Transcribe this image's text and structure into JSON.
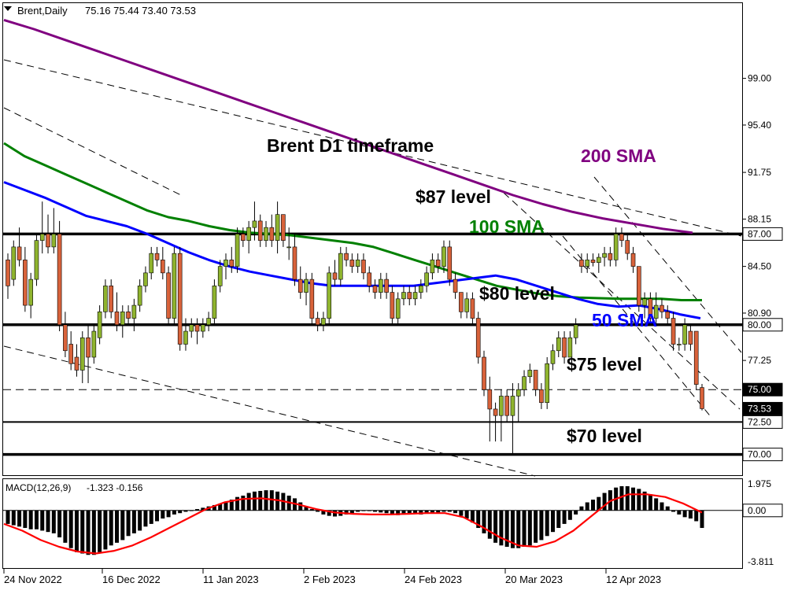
{
  "header": {
    "symbol": "Brent,Daily",
    "ohlc": "75.16 75.44 73.40 73.53"
  },
  "macd_header": {
    "label": "MACD(12,26,9)",
    "values": "-1.323 -0.156"
  },
  "annotations": {
    "title": "Brent D1 timeframe",
    "sma200": "200 SMA",
    "sma100": "100 SMA",
    "sma50": "50 SMA",
    "level87": "$87 level",
    "level80": "$80 level",
    "level75": "$75 level",
    "level70": "$70 level"
  },
  "colors": {
    "bull": "#8fb42e",
    "bear": "#d8623a",
    "sma200": "#800080",
    "sma100": "#008000",
    "sma50": "#0000ff",
    "macd_signal": "#ff0000",
    "macd_hist": "#000000"
  },
  "chart_data": [
    {
      "type": "candlestick",
      "title": "Brent D1 timeframe",
      "ylim": [
        68.4,
        104.8
      ],
      "y_ticks": [
        "99.00",
        "95.40",
        "91.75",
        "88.15",
        "84.50",
        "80.90",
        "77.25"
      ],
      "price_labels": [
        "87.00",
        "80.00",
        "75.00",
        "73.53",
        "72.50",
        "70.00"
      ],
      "x_ticks": [
        "24 Nov 2022",
        "16 Dec 2022",
        "11 Jan 2023",
        "2 Feb 2023",
        "24 Feb 2023",
        "20 Mar 2023",
        "12 Apr 2023"
      ],
      "horizontal_levels": [
        {
          "value": 87.0,
          "style": "solid-thick"
        },
        {
          "value": 80.0,
          "style": "solid-thick"
        },
        {
          "value": 75.0,
          "style": "dashed"
        },
        {
          "value": 72.5,
          "style": "solid"
        },
        {
          "value": 70.0,
          "style": "solid-thick"
        }
      ],
      "candles": [
        [
          85.0,
          85.5,
          82.0,
          83.0
        ],
        [
          83.5,
          86.5,
          83.0,
          86.0
        ],
        [
          86.0,
          87.5,
          84.5,
          85.0
        ],
        [
          85.0,
          86.0,
          81.0,
          81.5
        ],
        [
          81.5,
          84.0,
          80.5,
          83.5
        ],
        [
          83.5,
          87.0,
          83.0,
          86.5
        ],
        [
          86.5,
          89.5,
          85.5,
          87.0
        ],
        [
          87.0,
          88.5,
          85.5,
          86.0
        ],
        [
          86.0,
          89.0,
          85.5,
          87.0
        ],
        [
          87.0,
          88.0,
          79.5,
          80.0
        ],
        [
          80.0,
          81.0,
          77.5,
          78.0
        ],
        [
          78.5,
          79.5,
          76.5,
          77.0
        ],
        [
          77.5,
          78.5,
          76.0,
          76.5
        ],
        [
          76.5,
          79.5,
          75.5,
          79.0
        ],
        [
          79.0,
          80.0,
          75.5,
          77.5
        ],
        [
          77.5,
          80.0,
          77.0,
          79.5
        ],
        [
          79.0,
          81.5,
          78.5,
          81.0
        ],
        [
          81.0,
          83.5,
          80.5,
          83.0
        ],
        [
          83.0,
          83.5,
          80.5,
          81.0
        ],
        [
          81.0,
          82.5,
          79.5,
          80.0
        ],
        [
          80.0,
          81.5,
          79.0,
          81.0
        ],
        [
          81.0,
          81.5,
          80.0,
          80.5
        ],
        [
          80.5,
          82.0,
          79.5,
          81.5
        ],
        [
          81.5,
          83.5,
          81.0,
          83.0
        ],
        [
          83.0,
          84.5,
          82.5,
          84.0
        ],
        [
          84.0,
          86.0,
          83.5,
          85.5
        ],
        [
          85.5,
          86.0,
          84.5,
          85.0
        ],
        [
          85.0,
          86.0,
          83.5,
          84.0
        ],
        [
          84.0,
          84.5,
          80.0,
          80.5
        ],
        [
          80.5,
          86.0,
          80.0,
          85.5
        ],
        [
          85.5,
          86.0,
          78.0,
          78.5
        ],
        [
          78.5,
          80.5,
          78.0,
          79.5
        ],
        [
          79.5,
          80.5,
          79.0,
          80.0
        ],
        [
          80.0,
          80.5,
          78.5,
          79.5
        ],
        [
          79.5,
          80.5,
          79.0,
          80.0
        ],
        [
          80.0,
          81.0,
          79.5,
          80.5
        ],
        [
          80.5,
          83.5,
          80.0,
          83.0
        ],
        [
          83.0,
          85.0,
          82.5,
          84.5
        ],
        [
          84.5,
          85.5,
          83.5,
          85.0
        ],
        [
          85.0,
          86.0,
          84.0,
          84.5
        ],
        [
          84.5,
          87.5,
          84.0,
          87.0
        ],
        [
          87.0,
          87.5,
          86.0,
          86.5
        ],
        [
          86.5,
          88.0,
          85.5,
          87.5
        ],
        [
          87.5,
          89.5,
          86.5,
          88.0
        ],
        [
          88.0,
          88.5,
          86.0,
          86.5
        ],
        [
          86.5,
          88.0,
          86.0,
          87.5
        ],
        [
          87.5,
          88.5,
          86.0,
          86.5
        ],
        [
          86.5,
          89.5,
          85.5,
          88.5
        ],
        [
          88.5,
          88.5,
          86.0,
          86.5
        ],
        [
          86.0,
          87.5,
          85.0,
          86.0
        ],
        [
          86.0,
          87.0,
          83.0,
          83.5
        ],
        [
          83.5,
          84.5,
          82.0,
          82.5
        ],
        [
          82.5,
          84.0,
          81.5,
          83.5
        ],
        [
          83.5,
          84.0,
          80.0,
          80.5
        ],
        [
          80.5,
          81.0,
          79.5,
          80.0
        ],
        [
          80.0,
          81.0,
          79.5,
          80.5
        ],
        [
          80.5,
          84.5,
          80.0,
          84.0
        ],
        [
          84.0,
          85.0,
          83.0,
          83.5
        ],
        [
          83.5,
          86.0,
          83.0,
          85.5
        ],
        [
          85.5,
          86.0,
          84.5,
          85.0
        ],
        [
          85.0,
          85.5,
          84.0,
          84.5
        ],
        [
          84.5,
          85.5,
          84.0,
          85.0
        ],
        [
          85.0,
          85.5,
          83.5,
          84.0
        ],
        [
          84.0,
          84.5,
          82.5,
          83.0
        ],
        [
          83.0,
          83.5,
          82.0,
          82.5
        ],
        [
          82.5,
          84.0,
          82.0,
          83.5
        ],
        [
          83.5,
          84.0,
          82.0,
          82.5
        ],
        [
          82.5,
          83.0,
          80.0,
          80.5
        ],
        [
          80.5,
          82.5,
          80.0,
          82.0
        ],
        [
          82.0,
          83.0,
          81.5,
          82.5
        ],
        [
          82.5,
          83.0,
          81.5,
          82.0
        ],
        [
          82.0,
          83.0,
          81.5,
          82.5
        ],
        [
          82.5,
          83.5,
          82.0,
          83.0
        ],
        [
          83.0,
          84.5,
          82.5,
          84.0
        ],
        [
          84.0,
          85.5,
          83.5,
          85.0
        ],
        [
          85.0,
          85.5,
          84.0,
          84.5
        ],
        [
          84.5,
          86.5,
          84.0,
          86.0
        ],
        [
          86.0,
          86.5,
          83.0,
          83.5
        ],
        [
          83.5,
          84.0,
          82.0,
          82.5
        ],
        [
          82.5,
          82.5,
          80.5,
          81.0
        ],
        [
          81.0,
          82.5,
          80.5,
          82.0
        ],
        [
          82.0,
          82.5,
          80.0,
          80.5
        ],
        [
          80.5,
          81.0,
          77.0,
          77.5
        ],
        [
          77.5,
          78.0,
          74.5,
          75.0
        ],
        [
          75.0,
          76.0,
          71.0,
          73.5
        ],
        [
          73.5,
          74.0,
          71.0,
          73.0
        ],
        [
          73.0,
          75.0,
          71.0,
          74.5
        ],
        [
          74.5,
          75.0,
          72.5,
          73.0
        ],
        [
          73.0,
          75.5,
          70.0,
          74.5
        ],
        [
          74.5,
          75.5,
          72.5,
          75.0
        ],
        [
          75.0,
          76.5,
          74.5,
          76.0
        ],
        [
          76.0,
          77.0,
          75.5,
          76.5
        ],
        [
          76.5,
          76.5,
          74.5,
          75.0
        ],
        [
          75.0,
          75.5,
          73.5,
          74.0
        ],
        [
          74.0,
          77.5,
          73.5,
          77.0
        ],
        [
          77.0,
          78.5,
          76.5,
          78.0
        ],
        [
          78.0,
          79.5,
          77.5,
          79.0
        ],
        [
          79.0,
          79.5,
          77.0,
          77.5
        ],
        [
          77.5,
          79.5,
          77.5,
          79.0
        ],
        [
          79.0,
          80.5,
          78.5,
          80.0
        ],
        [
          85.0,
          85.5,
          84.0,
          84.5
        ],
        [
          84.5,
          85.5,
          84.0,
          85.0
        ],
        [
          85.0,
          85.5,
          84.5,
          84.8
        ],
        [
          84.8,
          85.5,
          84.0,
          85.2
        ],
        [
          85.2,
          86.0,
          84.5,
          85.5
        ],
        [
          85.5,
          86.0,
          84.5,
          85.0
        ],
        [
          85.0,
          87.5,
          84.5,
          87.0
        ],
        [
          87.0,
          87.5,
          86.0,
          86.5
        ],
        [
          86.5,
          87.0,
          85.0,
          85.5
        ],
        [
          85.5,
          86.0,
          84.0,
          84.5
        ],
        [
          84.5,
          84.5,
          81.0,
          81.5
        ],
        [
          81.5,
          82.5,
          80.5,
          82.0
        ],
        [
          82.0,
          82.5,
          80.0,
          80.5
        ],
        [
          80.5,
          82.5,
          80.0,
          81.5
        ],
        [
          81.5,
          82.0,
          80.5,
          81.0
        ],
        [
          81.0,
          81.5,
          80.0,
          80.5
        ],
        [
          80.5,
          81.0,
          78.0,
          78.5
        ],
        [
          78.5,
          79.0,
          78.0,
          78.5
        ],
        [
          78.5,
          80.5,
          78.0,
          80.0
        ],
        [
          79.5,
          80.0,
          78.0,
          78.5
        ],
        [
          79.5,
          79.5,
          75.0,
          75.4
        ],
        [
          75.16,
          75.44,
          73.4,
          73.53
        ]
      ],
      "series": [
        {
          "name": "200 SMA",
          "values": [
            103.5,
            102.8,
            102.0,
            101.2,
            100.4,
            99.6,
            98.8,
            98.0,
            97.2,
            96.4,
            95.6,
            94.8,
            94.0,
            93.2,
            92.4,
            91.6,
            90.8,
            90.0,
            89.3,
            88.7,
            88.2,
            87.8,
            87.4,
            87.1
          ]
        },
        {
          "name": "100 SMA",
          "values": [
            94.0,
            93.0,
            92.3,
            91.6,
            90.9,
            90.2,
            89.5,
            88.8,
            88.3,
            88.0,
            87.6,
            87.3,
            87.1,
            87.0,
            86.9,
            86.7,
            86.5,
            86.3,
            86.0,
            85.5,
            85.0,
            84.5,
            84.0,
            83.5,
            83.0,
            82.7,
            82.4,
            82.2,
            82.1,
            82.05,
            82.0,
            82.0,
            82.0,
            81.9,
            81.9
          ]
        },
        {
          "name": "50 SMA",
          "values": [
            91.0,
            90.4,
            89.8,
            89.1,
            88.4,
            88.0,
            87.6,
            87.0,
            86.3,
            85.6,
            85.0,
            84.5,
            84.1,
            83.8,
            83.5,
            83.2,
            83.0,
            83.0,
            83.0,
            83.0,
            83.0,
            83.2,
            83.4,
            83.6,
            83.8,
            83.5,
            83.0,
            82.5,
            82.0,
            81.6,
            81.4,
            81.5,
            81.2,
            80.8,
            80.5
          ]
        }
      ]
    },
    {
      "type": "bar",
      "title": "MACD(12,26,9)",
      "ylim": [
        -3.811,
        1.975
      ],
      "y_ticks": [
        "1.975",
        "0.00",
        "-3.811"
      ],
      "histogram": [
        -1.0,
        -1.1,
        -1.2,
        -1.3,
        -1.4,
        -1.4,
        -1.5,
        -1.6,
        -1.7,
        -2.0,
        -2.4,
        -2.8,
        -3.1,
        -3.2,
        -3.3,
        -3.3,
        -3.1,
        -2.9,
        -2.6,
        -2.4,
        -2.2,
        -1.9,
        -1.7,
        -1.5,
        -1.2,
        -1.0,
        -0.8,
        -0.6,
        -0.5,
        -0.3,
        -0.2,
        -0.1,
        0.0,
        0.1,
        0.2,
        0.3,
        0.4,
        0.5,
        0.6,
        0.8,
        1.0,
        1.1,
        1.3,
        1.4,
        1.45,
        1.5,
        1.5,
        1.4,
        1.3,
        1.1,
        0.9,
        0.6,
        0.3,
        0.1,
        -0.1,
        -0.3,
        -0.4,
        -0.45,
        -0.4,
        -0.3,
        -0.2,
        -0.1,
        -0.05,
        -0.05,
        -0.1,
        -0.15,
        -0.2,
        -0.3,
        -0.35,
        -0.3,
        -0.25,
        -0.2,
        -0.3,
        -0.25,
        -0.2,
        -0.15,
        -0.1,
        -0.1,
        -0.2,
        -0.4,
        -0.6,
        -0.9,
        -1.3,
        -1.7,
        -2.1,
        -2.4,
        -2.6,
        -2.7,
        -2.8,
        -2.8,
        -2.7,
        -2.6,
        -2.4,
        -2.2,
        -1.9,
        -1.6,
        -1.3,
        -1.0,
        -0.7,
        -0.3,
        0.3,
        0.6,
        0.8,
        1.0,
        1.3,
        1.5,
        1.7,
        1.8,
        1.8,
        1.7,
        1.6,
        1.4,
        1.2,
        0.9,
        0.6,
        0.3,
        -0.1,
        -0.3,
        -0.5,
        -0.6,
        -0.8,
        -1.3
      ],
      "signal": [
        -1.0,
        -1.5,
        -2.2,
        -2.7,
        -3.05,
        -3.2,
        -3.0,
        -2.6,
        -2.0,
        -1.3,
        -0.6,
        0.1,
        0.6,
        0.85,
        0.9,
        0.75,
        0.45,
        0.1,
        -0.15,
        -0.25,
        -0.3,
        -0.3,
        -0.25,
        -0.2,
        -0.2,
        -0.5,
        -1.2,
        -2.0,
        -2.6,
        -2.7,
        -2.3,
        -1.5,
        -0.4,
        0.7,
        1.2,
        1.2,
        1.0,
        0.5,
        -0.156
      ]
    }
  ]
}
